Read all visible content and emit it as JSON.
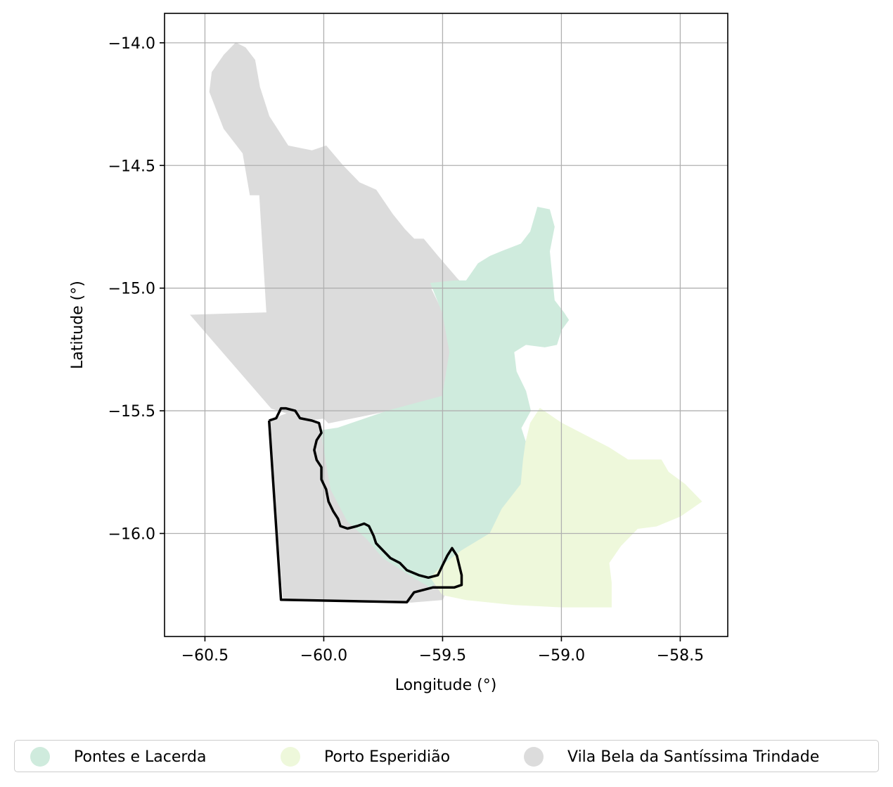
{
  "chart_data": {
    "type": "map",
    "xlabel": "Longitude (°)",
    "ylabel": "Latitude (°)",
    "xlim": [
      -60.67,
      -58.3
    ],
    "ylim": [
      -16.42,
      -13.88
    ],
    "x_ticks": [
      -60.5,
      -60.0,
      -59.5,
      -59.0,
      -58.5
    ],
    "x_tick_labels": [
      "−60.5",
      "−60.0",
      "−59.5",
      "−59.0",
      "−58.5"
    ],
    "y_ticks": [
      -14.0,
      -14.5,
      -15.0,
      -15.5,
      -16.0
    ],
    "y_tick_labels": [
      "−14.0",
      "−14.5",
      "−15.0",
      "−15.5",
      "−16.0"
    ],
    "grid": true,
    "legend_placement": "bottom-center",
    "regions": [
      {
        "name": "Vila Bela da Santíssima Trindade",
        "color": "#dcdcdc",
        "outline": [
          [
            -60.37,
            -14.0
          ],
          [
            -60.33,
            -14.02
          ],
          [
            -60.29,
            -14.07
          ],
          [
            -60.27,
            -14.18
          ],
          [
            -60.23,
            -14.3
          ],
          [
            -60.15,
            -14.42
          ],
          [
            -60.05,
            -14.44
          ],
          [
            -59.99,
            -14.42
          ],
          [
            -59.92,
            -14.5
          ],
          [
            -59.85,
            -14.57
          ],
          [
            -59.78,
            -14.6
          ],
          [
            -59.71,
            -14.7
          ],
          [
            -59.66,
            -14.76
          ],
          [
            -59.62,
            -14.8
          ],
          [
            -59.58,
            -14.8
          ],
          [
            -59.52,
            -14.87
          ],
          [
            -59.44,
            -14.96
          ],
          [
            -59.4,
            -15.0
          ],
          [
            -59.48,
            -15.02
          ],
          [
            -59.55,
            -15.0
          ],
          [
            -59.5,
            -15.1
          ],
          [
            -59.47,
            -15.26
          ],
          [
            -59.5,
            -15.44
          ],
          [
            -59.73,
            -15.5
          ],
          [
            -59.98,
            -15.55
          ],
          [
            -60.0,
            -15.53
          ],
          [
            -60.07,
            -15.54
          ],
          [
            -60.1,
            -15.52
          ],
          [
            -60.15,
            -15.51
          ],
          [
            -60.18,
            -15.52
          ],
          [
            -60.21,
            -15.54
          ],
          [
            -60.23,
            -15.54
          ],
          [
            -60.17,
            -16.27
          ],
          [
            -59.63,
            -16.28
          ],
          [
            -59.5,
            -16.27
          ],
          [
            -59.45,
            -16.15
          ],
          [
            -59.58,
            -16.12
          ],
          [
            -59.7,
            -16.07
          ],
          [
            -59.8,
            -15.97
          ],
          [
            -59.9,
            -15.95
          ],
          [
            -59.97,
            -15.8
          ],
          [
            -60.0,
            -15.65
          ],
          [
            -60.02,
            -15.55
          ],
          [
            -60.22,
            -15.49
          ],
          [
            -60.56,
            -15.11
          ],
          [
            -60.24,
            -15.1
          ],
          [
            -60.27,
            -14.62
          ],
          [
            -60.31,
            -14.62
          ],
          [
            -60.34,
            -14.45
          ],
          [
            -60.42,
            -14.35
          ],
          [
            -60.48,
            -14.2
          ],
          [
            -60.47,
            -14.12
          ],
          [
            -60.42,
            -14.05
          ]
        ]
      },
      {
        "name": "Pontes e Lacerda",
        "color": "#cfebdd",
        "outline": [
          [
            -59.1,
            -14.67
          ],
          [
            -59.05,
            -14.68
          ],
          [
            -59.03,
            -14.75
          ],
          [
            -59.05,
            -14.85
          ],
          [
            -59.04,
            -14.95
          ],
          [
            -59.03,
            -15.05
          ],
          [
            -58.99,
            -15.1
          ],
          [
            -58.97,
            -15.13
          ],
          [
            -59.0,
            -15.17
          ],
          [
            -59.02,
            -15.23
          ],
          [
            -59.07,
            -15.24
          ],
          [
            -59.15,
            -15.23
          ],
          [
            -59.2,
            -15.26
          ],
          [
            -59.19,
            -15.34
          ],
          [
            -59.15,
            -15.42
          ],
          [
            -59.13,
            -15.5
          ],
          [
            -59.17,
            -15.57
          ],
          [
            -59.15,
            -15.63
          ],
          [
            -59.16,
            -15.7
          ],
          [
            -59.17,
            -15.8
          ],
          [
            -59.25,
            -15.9
          ],
          [
            -59.3,
            -16.0
          ],
          [
            -59.38,
            -16.05
          ],
          [
            -59.43,
            -16.12
          ],
          [
            -59.5,
            -16.17
          ],
          [
            -59.55,
            -16.22
          ],
          [
            -59.62,
            -16.18
          ],
          [
            -59.75,
            -16.1
          ],
          [
            -59.82,
            -16.02
          ],
          [
            -59.9,
            -15.95
          ],
          [
            -59.97,
            -15.82
          ],
          [
            -60.0,
            -15.65
          ],
          [
            -60.01,
            -15.58
          ],
          [
            -59.94,
            -15.57
          ],
          [
            -59.73,
            -15.5
          ],
          [
            -59.5,
            -15.44
          ],
          [
            -59.47,
            -15.26
          ],
          [
            -59.5,
            -15.1
          ],
          [
            -59.55,
            -14.98
          ],
          [
            -59.45,
            -14.97
          ],
          [
            -59.4,
            -14.97
          ],
          [
            -59.35,
            -14.9
          ],
          [
            -59.3,
            -14.87
          ],
          [
            -59.25,
            -14.85
          ],
          [
            -59.17,
            -14.82
          ],
          [
            -59.13,
            -14.77
          ]
        ]
      },
      {
        "name": "Porto Esperidião",
        "color": "#eef8db",
        "outline": [
          [
            -59.09,
            -15.49
          ],
          [
            -59.0,
            -15.55
          ],
          [
            -58.9,
            -15.6
          ],
          [
            -58.8,
            -15.65
          ],
          [
            -58.72,
            -15.7
          ],
          [
            -58.58,
            -15.7
          ],
          [
            -58.55,
            -15.75
          ],
          [
            -58.48,
            -15.8
          ],
          [
            -58.41,
            -15.87
          ],
          [
            -58.5,
            -15.93
          ],
          [
            -58.6,
            -15.97
          ],
          [
            -58.68,
            -15.98
          ],
          [
            -58.75,
            -16.05
          ],
          [
            -58.8,
            -16.12
          ],
          [
            -58.79,
            -16.2
          ],
          [
            -58.79,
            -16.3
          ],
          [
            -59.0,
            -16.3
          ],
          [
            -59.2,
            -16.29
          ],
          [
            -59.4,
            -16.27
          ],
          [
            -59.5,
            -16.25
          ],
          [
            -59.55,
            -16.18
          ],
          [
            -59.5,
            -16.13
          ],
          [
            -59.42,
            -16.07
          ],
          [
            -59.3,
            -16.0
          ],
          [
            -59.25,
            -15.9
          ],
          [
            -59.17,
            -15.8
          ],
          [
            -59.16,
            -15.7
          ],
          [
            -59.15,
            -15.63
          ],
          [
            -59.13,
            -15.55
          ]
        ]
      }
    ],
    "highlight_outline": {
      "color": "#000000",
      "points": [
        [
          -60.23,
          -15.54
        ],
        [
          -60.2,
          -15.53
        ],
        [
          -60.18,
          -15.49
        ],
        [
          -60.16,
          -15.49
        ],
        [
          -60.12,
          -15.5
        ],
        [
          -60.1,
          -15.53
        ],
        [
          -60.05,
          -15.54
        ],
        [
          -60.02,
          -15.55
        ],
        [
          -60.01,
          -15.59
        ],
        [
          -60.03,
          -15.62
        ],
        [
          -60.04,
          -15.66
        ],
        [
          -60.03,
          -15.7
        ],
        [
          -60.01,
          -15.73
        ],
        [
          -60.01,
          -15.78
        ],
        [
          -59.99,
          -15.82
        ],
        [
          -59.98,
          -15.87
        ],
        [
          -59.96,
          -15.91
        ],
        [
          -59.94,
          -15.94
        ],
        [
          -59.93,
          -15.97
        ],
        [
          -59.9,
          -15.98
        ],
        [
          -59.86,
          -15.97
        ],
        [
          -59.83,
          -15.96
        ],
        [
          -59.81,
          -15.97
        ],
        [
          -59.79,
          -16.01
        ],
        [
          -59.78,
          -16.04
        ],
        [
          -59.75,
          -16.07
        ],
        [
          -59.72,
          -16.1
        ],
        [
          -59.68,
          -16.12
        ],
        [
          -59.65,
          -16.15
        ],
        [
          -59.6,
          -16.17
        ],
        [
          -59.56,
          -16.18
        ],
        [
          -59.52,
          -16.17
        ],
        [
          -59.5,
          -16.13
        ],
        [
          -59.48,
          -16.09
        ],
        [
          -59.46,
          -16.06
        ],
        [
          -59.44,
          -16.09
        ],
        [
          -59.43,
          -16.13
        ],
        [
          -59.42,
          -16.17
        ],
        [
          -59.42,
          -16.21
        ],
        [
          -59.45,
          -16.22
        ],
        [
          -59.54,
          -16.22
        ],
        [
          -59.58,
          -16.23
        ],
        [
          -59.62,
          -16.24
        ],
        [
          -59.65,
          -16.28
        ],
        [
          -60.18,
          -16.27
        ],
        [
          -60.23,
          -15.54
        ]
      ]
    }
  },
  "legend": {
    "items": [
      {
        "label": "Pontes e Lacerda",
        "color": "#cfebdd"
      },
      {
        "label": "Porto Esperidião",
        "color": "#eef8db"
      },
      {
        "label": "Vila Bela da Santíssima Trindade",
        "color": "#dcdcdc"
      }
    ]
  }
}
